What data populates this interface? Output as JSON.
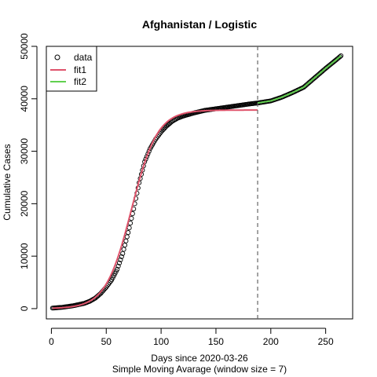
{
  "chart_data": {
    "type": "scatter",
    "title": "Afghanistan / Logistic",
    "xlabel": "Days since 2020-03-26",
    "xlabel2": "Simple Moving Avarage (window size = 7)",
    "ylabel": "Cumulative Cases",
    "xlim": [
      -4.6,
      274.6
    ],
    "ylim": [
      -1957,
      50000
    ],
    "x_ticks": [
      0,
      50,
      100,
      150,
      200,
      250
    ],
    "y_ticks": [
      0,
      10000,
      20000,
      30000,
      40000,
      50000
    ],
    "x_tick_labels": [
      "0",
      "50",
      "100",
      "150",
      "200",
      "250"
    ],
    "y_tick_labels": [
      "0",
      "10000",
      "20000",
      "30000",
      "40000",
      "50000"
    ],
    "vline": {
      "x": 188,
      "style": "dashed",
      "color": "#666666"
    },
    "grid": false,
    "legend": {
      "position": "top-left",
      "entries": [
        {
          "label": "data",
          "symbol": "open-circle",
          "color": "#000000"
        },
        {
          "label": "fit1",
          "symbol": "line",
          "color": "#DF536B"
        },
        {
          "label": "fit2",
          "symbol": "line",
          "color": "#61D04F"
        }
      ]
    },
    "series": [
      {
        "name": "data",
        "style": "points",
        "color": "#000000",
        "x_range": [
          1,
          264
        ],
        "curve": [
          [
            1,
            100
          ],
          [
            10,
            250
          ],
          [
            20,
            550
          ],
          [
            30,
            1000
          ],
          [
            35,
            1400
          ],
          [
            40,
            2000
          ],
          [
            45,
            2900
          ],
          [
            50,
            4100
          ],
          [
            55,
            5500
          ],
          [
            60,
            7500
          ],
          [
            65,
            10500
          ],
          [
            70,
            14500
          ],
          [
            75,
            19000
          ],
          [
            80,
            24000
          ],
          [
            85,
            28000
          ],
          [
            90,
            30500
          ],
          [
            95,
            32300
          ],
          [
            100,
            33700
          ],
          [
            105,
            34800
          ],
          [
            110,
            35700
          ],
          [
            115,
            36300
          ],
          [
            120,
            36700
          ],
          [
            130,
            37300
          ],
          [
            140,
            37800
          ],
          [
            150,
            38100
          ],
          [
            160,
            38400
          ],
          [
            170,
            38700
          ],
          [
            180,
            39000
          ],
          [
            188,
            39200
          ],
          [
            200,
            39600
          ],
          [
            210,
            40300
          ],
          [
            220,
            41200
          ],
          [
            230,
            42200
          ],
          [
            240,
            44000
          ],
          [
            250,
            45800
          ],
          [
            260,
            47500
          ],
          [
            264,
            48200
          ]
        ]
      },
      {
        "name": "fit1",
        "style": "line",
        "color": "#DF536B",
        "logistic": {
          "K": 37850,
          "r": 0.085,
          "x0": 73,
          "x_range": [
            1,
            188
          ]
        }
      },
      {
        "name": "fit2",
        "style": "line",
        "color": "#61D04F",
        "x_range": [
          188,
          264
        ],
        "curve": [
          [
            188,
            39200
          ],
          [
            200,
            39600
          ],
          [
            210,
            40300
          ],
          [
            220,
            41200
          ],
          [
            230,
            42200
          ],
          [
            240,
            44000
          ],
          [
            250,
            45800
          ],
          [
            260,
            47500
          ],
          [
            264,
            48200
          ]
        ]
      }
    ]
  }
}
